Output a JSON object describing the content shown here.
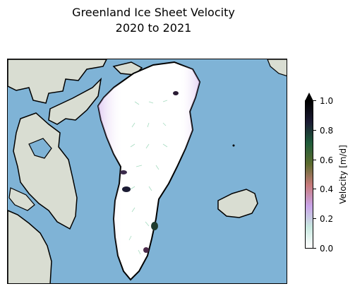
{
  "figure": {
    "title_line1": "Greenland Ice Sheet Velocity",
    "title_line2": "2020 to 2021"
  },
  "map": {
    "ocean_color": "#7fb3d6",
    "land_color": "#d9ddd2",
    "ice_color": "#ffffff",
    "coastline_color": "#000000",
    "quiver_color": "#8fd3b0"
  },
  "colorbar": {
    "label": "Velocity [m/d]",
    "min": 0.0,
    "max": 1.0,
    "extend": "max",
    "ticks": [
      "0.0",
      "0.2",
      "0.4",
      "0.6",
      "0.8",
      "1.0"
    ],
    "colormap_stops": [
      "#ffffff",
      "#c8e8e0",
      "#c9a4e8",
      "#c77a7a",
      "#5c6b2e",
      "#1f5b3a",
      "#1b1b33",
      "#000000"
    ]
  }
}
